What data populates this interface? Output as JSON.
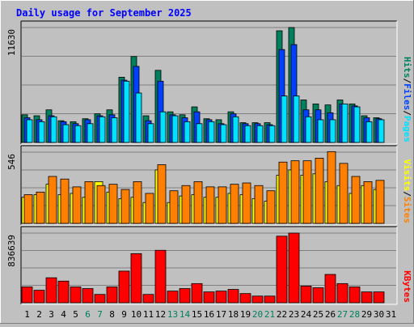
{
  "title": "Daily usage for September 2025",
  "colors": {
    "background": "#c0c0c0",
    "title": "#0000ff",
    "grid": "#808080",
    "hits": "#00805c",
    "files": "#0040ff",
    "pages": "#00e0ff",
    "visits": "#ffff00",
    "sites": "#ff8000",
    "kbytes": "#ff0000",
    "weekday_label": "#000000",
    "weekend_label": "#00805c"
  },
  "chart_data": [
    {
      "type": "bar",
      "ymax_label": "11630",
      "ylim": [
        0,
        11630
      ],
      "legend": [
        {
          "text": "Pages",
          "color": "#00e0ff"
        },
        {
          "text": "/",
          "color": "#000000"
        },
        {
          "text": "Files",
          "color": "#0040ff"
        },
        {
          "text": "/",
          "color": "#000000"
        },
        {
          "text": "Hits",
          "color": "#00805c"
        }
      ],
      "categories": [
        1,
        2,
        3,
        4,
        5,
        6,
        7,
        8,
        9,
        10,
        11,
        12,
        13,
        14,
        15,
        16,
        17,
        18,
        19,
        20,
        21,
        22,
        23,
        24,
        25,
        26,
        27,
        28,
        29,
        30
      ],
      "series": [
        {
          "name": "Hits",
          "values": [
            2800,
            2700,
            3300,
            2200,
            2100,
            2400,
            2900,
            3300,
            6600,
            8700,
            2700,
            7300,
            3100,
            2800,
            3600,
            2400,
            2300,
            3100,
            2000,
            2000,
            2000,
            11300,
            11630,
            4300,
            3900,
            3800,
            4300,
            3900,
            2700,
            2500
          ]
        },
        {
          "name": "Files",
          "values": [
            2500,
            2300,
            2700,
            2100,
            1900,
            2300,
            2700,
            2800,
            6300,
            7700,
            2200,
            6200,
            2800,
            2500,
            3100,
            2300,
            1900,
            2900,
            1900,
            1900,
            1800,
            9400,
            9900,
            3300,
            3300,
            3000,
            3900,
            3700,
            2500,
            2400
          ]
        },
        {
          "name": "Pages",
          "values": [
            2300,
            2100,
            2600,
            1800,
            1700,
            1900,
            2600,
            2500,
            6200,
            5000,
            1900,
            3100,
            2700,
            2100,
            1900,
            2100,
            1800,
            2600,
            1700,
            1700,
            1700,
            4700,
            4700,
            2600,
            2300,
            2300,
            3900,
            3600,
            2100,
            2300
          ]
        }
      ]
    },
    {
      "type": "bar",
      "ymax_label": "546",
      "ylim": [
        0,
        546
      ],
      "legend": [
        {
          "text": "Sites",
          "color": "#ff8000"
        },
        {
          "text": "/",
          "color": "#000000"
        },
        {
          "text": "Visits",
          "color": "#ffff00"
        }
      ],
      "categories": [
        1,
        2,
        3,
        4,
        5,
        6,
        7,
        8,
        9,
        10,
        11,
        12,
        13,
        14,
        15,
        16,
        17,
        18,
        19,
        20,
        21,
        22,
        23,
        24,
        25,
        26,
        27,
        28,
        29,
        30
      ],
      "series": [
        {
          "name": "Visits",
          "values": [
            200,
            220,
            300,
            220,
            230,
            200,
            320,
            240,
            190,
            200,
            160,
            410,
            160,
            210,
            220,
            200,
            200,
            230,
            220,
            190,
            170,
            370,
            410,
            370,
            380,
            320,
            290,
            230,
            290,
            260
          ]
        },
        {
          "name": "Sites",
          "values": [
            220,
            240,
            360,
            340,
            280,
            320,
            290,
            300,
            260,
            320,
            230,
            450,
            250,
            290,
            320,
            280,
            280,
            300,
            310,
            290,
            250,
            470,
            480,
            480,
            500,
            550,
            460,
            360,
            320,
            330
          ]
        }
      ]
    },
    {
      "type": "bar",
      "ymax_label": "836639",
      "ylim": [
        0,
        836639
      ],
      "legend": [
        {
          "text": "KBytes",
          "color": "#ff0000"
        }
      ],
      "categories": [
        1,
        2,
        3,
        4,
        5,
        6,
        7,
        8,
        9,
        10,
        11,
        12,
        13,
        14,
        15,
        16,
        17,
        18,
        19,
        20,
        21,
        22,
        23,
        24,
        25,
        26,
        27,
        28,
        29,
        30
      ],
      "series": [
        {
          "name": "KBytes",
          "values": [
            190000,
            150000,
            300000,
            260000,
            190000,
            170000,
            100000,
            190000,
            380000,
            590000,
            100000,
            630000,
            140000,
            170000,
            230000,
            130000,
            140000,
            160000,
            110000,
            80000,
            80000,
            800000,
            836639,
            200000,
            180000,
            340000,
            230000,
            190000,
            130000,
            130000
          ]
        }
      ]
    }
  ],
  "x_axis_labels": [
    "1",
    "2",
    "3",
    "4",
    "5",
    "6",
    "7",
    "8",
    "9",
    "10",
    "11",
    "12",
    "13",
    "14",
    "15",
    "16",
    "17",
    "18",
    "19",
    "20",
    "21",
    "22",
    "23",
    "24",
    "25",
    "26",
    "27",
    "28",
    "29",
    "30",
    "31"
  ],
  "weekend_days": [
    6,
    7,
    13,
    14,
    20,
    21,
    27,
    28
  ]
}
